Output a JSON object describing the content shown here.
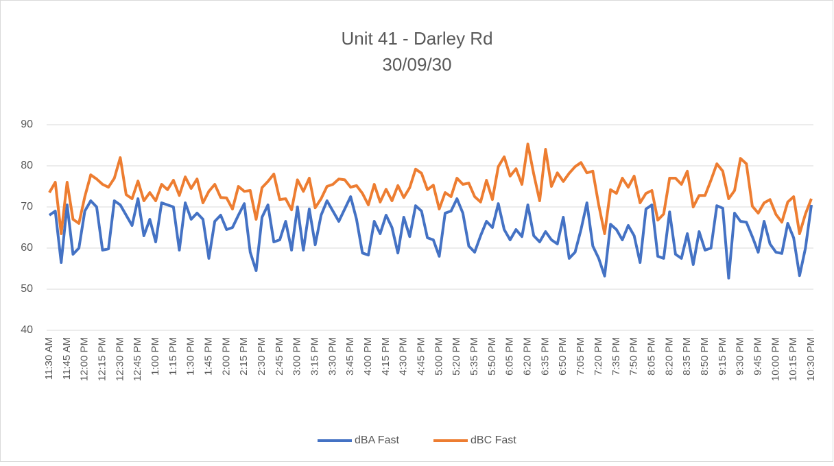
{
  "chart_data": {
    "type": "line",
    "title": "Unit 41 - Darley Rd",
    "subtitle": "30/09/30",
    "categories": [
      "11:30 AM",
      null,
      null,
      "11:45 AM",
      null,
      null,
      "12:00 PM",
      null,
      null,
      "12:15 PM",
      null,
      null,
      "12:30 PM",
      null,
      null,
      "12:45 PM",
      null,
      null,
      "1:00 PM",
      null,
      null,
      "1:15 PM",
      null,
      null,
      "1:30 PM",
      null,
      null,
      "1:45 PM",
      null,
      null,
      "2:00 PM",
      null,
      null,
      "2:15 PM",
      null,
      null,
      "2:30 PM",
      null,
      null,
      "2:45 PM",
      null,
      null,
      "3:00 PM",
      null,
      null,
      "3:15 PM",
      null,
      null,
      "3:30 PM",
      null,
      null,
      "3:45 PM",
      null,
      null,
      "4:00 PM",
      null,
      null,
      "4:15 PM",
      null,
      null,
      "4:30 PM",
      null,
      null,
      "4:45 PM",
      null,
      null,
      "5:00 PM",
      null,
      null,
      "5:20 PM",
      null,
      null,
      "5:35 PM",
      null,
      null,
      "5:50 PM",
      null,
      null,
      "6:05 PM",
      null,
      null,
      "6:20 PM",
      null,
      null,
      "6:35 PM",
      null,
      null,
      "6:50 PM",
      null,
      null,
      "7:05 PM",
      null,
      null,
      "7:20 PM",
      null,
      null,
      "7:35 PM",
      null,
      null,
      "7:50 PM",
      null,
      null,
      "8:05 PM",
      null,
      null,
      "8:20 PM",
      null,
      null,
      "8:35 PM",
      null,
      null,
      "8:50 PM",
      null,
      null,
      "9:15 PM",
      null,
      null,
      "9:30 PM",
      null,
      null,
      "9:45 PM",
      null,
      null,
      "10:00 PM",
      null,
      null,
      "10:15 PM",
      null,
      null,
      "10:30 PM"
    ],
    "series": [
      {
        "name": "dBA Fast",
        "color": "#4472c4",
        "values": [
          68,
          69,
          56.5,
          70.5,
          58.5,
          60,
          69,
          71.5,
          70,
          59.5,
          59.8,
          71.5,
          70.5,
          68,
          65.5,
          72,
          63,
          67,
          61.5,
          71,
          70.5,
          70,
          59.5,
          71,
          67,
          68.5,
          67,
          57.5,
          66.5,
          68,
          64.5,
          65,
          68,
          70.8,
          59,
          54.5,
          67.5,
          70.5,
          61.5,
          62,
          66.5,
          59.5,
          70,
          59.5,
          69.5,
          60.8,
          68,
          71.5,
          69,
          66.5,
          69.5,
          72.5,
          67,
          58.8,
          58.3,
          66.5,
          63.5,
          68,
          65,
          58.8,
          67.5,
          62.8,
          70.3,
          69,
          62.5,
          62,
          58,
          68.5,
          69,
          72,
          68.5,
          60.5,
          59,
          63,
          66.5,
          65,
          70.8,
          64.5,
          62,
          64.5,
          62.8,
          70.5,
          63,
          61.5,
          64,
          62,
          61,
          67.5,
          57.5,
          59,
          64.5,
          71,
          60.5,
          57.5,
          53.2,
          65.8,
          64.5,
          62,
          65.5,
          63,
          56.5,
          69.5,
          70.5,
          58,
          57.5,
          68.8,
          58.5,
          57.5,
          63.5,
          56,
          64,
          59.5,
          60,
          70.3,
          69.7,
          52.7,
          68.5,
          66.5,
          66.3,
          62.8,
          59,
          66.5,
          61,
          59,
          58.7,
          66,
          62.5,
          53.3,
          60,
          70.5
        ]
      },
      {
        "name": "dBC Fast",
        "color": "#ed7d31",
        "values": [
          73.5,
          76,
          63.5,
          76,
          67,
          66,
          72.5,
          77.8,
          76.8,
          75.5,
          74.8,
          77,
          82,
          73,
          72,
          76.3,
          71.5,
          73.5,
          71.5,
          75.5,
          74.2,
          76.5,
          72.8,
          77.3,
          74.5,
          76.8,
          71,
          73.8,
          75.5,
          72.3,
          72.2,
          69.5,
          75,
          73.8,
          74,
          67,
          74.7,
          76.2,
          78,
          71.8,
          72,
          69.3,
          76.6,
          73.8,
          77,
          69.8,
          72,
          75,
          75.5,
          76.8,
          76.6,
          74.8,
          75.2,
          73.3,
          70.5,
          75.5,
          71.2,
          74.3,
          71.5,
          75.2,
          72.3,
          74.7,
          79.2,
          78.2,
          74.2,
          75.3,
          69.5,
          73.5,
          72.5,
          77,
          75.5,
          75.8,
          72.5,
          71.2,
          76.5,
          71.8,
          79.8,
          82.2,
          77.5,
          79.3,
          75.5,
          85.3,
          78,
          71.5,
          84,
          75,
          78.3,
          76.2,
          78.2,
          79.8,
          80.8,
          78.3,
          78.7,
          70.5,
          63.5,
          74.2,
          73.3,
          77,
          74.8,
          77.5,
          71,
          73.3,
          74,
          66.8,
          68.3,
          77,
          77,
          75.5,
          78.7,
          70,
          72.8,
          72.8,
          76.5,
          80.5,
          78.7,
          72,
          74,
          81.8,
          80.5,
          70.2,
          68.5,
          71,
          71.8,
          68.2,
          66.3,
          71.2,
          72.5,
          63.5,
          68.3,
          72
        ]
      }
    ],
    "ylim": [
      40,
      90
    ],
    "yticks": [
      40,
      50,
      60,
      70,
      80,
      90
    ],
    "grid": true,
    "legend": "bottom"
  }
}
